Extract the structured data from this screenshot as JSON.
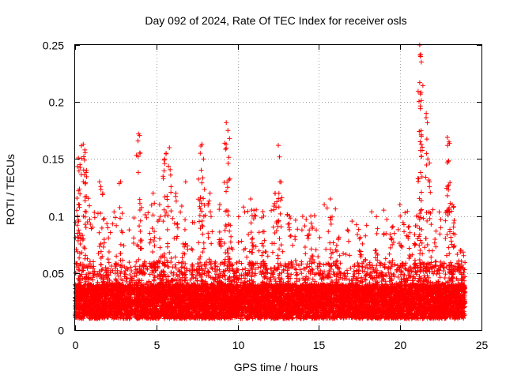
{
  "chart_data": {
    "type": "scatter",
    "title": "Day 092 of 2024, Rate Of TEC Index for receiver osls",
    "xlabel": "GPS time / hours",
    "ylabel": "ROTI / TECUs",
    "xlim": [
      0,
      25
    ],
    "ylim": [
      0,
      0.25
    ],
    "xticks": [
      0,
      5,
      10,
      15,
      20,
      25
    ],
    "yticks": [
      0,
      0.05,
      0.1,
      0.15,
      0.2,
      0.25
    ],
    "xtick_labels": [
      "0",
      "5",
      "10",
      "15",
      "20",
      "25"
    ],
    "ytick_labels": [
      "0",
      "0.05",
      "0.1",
      "0.15",
      "0.2",
      "0.25"
    ],
    "grid": true,
    "marker": "plus",
    "color": "#ff0000",
    "x_range_of_data": [
      0,
      24
    ],
    "baseline_band": [
      0.01,
      0.04
    ],
    "points_per_hour": 420,
    "seed": 92,
    "spikes": [
      {
        "x": 0.1,
        "y": 0.105
      },
      {
        "x": 0.2,
        "y": 0.151
      },
      {
        "x": 0.3,
        "y": 0.145
      },
      {
        "x": 0.5,
        "y": 0.163
      },
      {
        "x": 0.6,
        "y": 0.158
      },
      {
        "x": 0.7,
        "y": 0.14
      },
      {
        "x": 1.5,
        "y": 0.13
      },
      {
        "x": 1.7,
        "y": 0.12
      },
      {
        "x": 2.8,
        "y": 0.13
      },
      {
        "x": 3.9,
        "y": 0.172
      },
      {
        "x": 4.0,
        "y": 0.155
      },
      {
        "x": 4.8,
        "y": 0.12
      },
      {
        "x": 5.2,
        "y": 0.11
      },
      {
        "x": 5.5,
        "y": 0.15
      },
      {
        "x": 5.6,
        "y": 0.155
      },
      {
        "x": 5.8,
        "y": 0.16
      },
      {
        "x": 6.2,
        "y": 0.12
      },
      {
        "x": 6.8,
        "y": 0.13
      },
      {
        "x": 7.7,
        "y": 0.155
      },
      {
        "x": 7.8,
        "y": 0.163
      },
      {
        "x": 7.9,
        "y": 0.15
      },
      {
        "x": 8.3,
        "y": 0.12
      },
      {
        "x": 8.9,
        "y": 0.11
      },
      {
        "x": 9.3,
        "y": 0.182
      },
      {
        "x": 9.4,
        "y": 0.175
      },
      {
        "x": 9.5,
        "y": 0.168
      },
      {
        "x": 10.8,
        "y": 0.115
      },
      {
        "x": 11.0,
        "y": 0.105
      },
      {
        "x": 11.6,
        "y": 0.1
      },
      {
        "x": 12.3,
        "y": 0.12
      },
      {
        "x": 12.5,
        "y": 0.162
      },
      {
        "x": 12.6,
        "y": 0.13
      },
      {
        "x": 13.2,
        "y": 0.1
      },
      {
        "x": 14.5,
        "y": 0.1
      },
      {
        "x": 15.7,
        "y": 0.115
      },
      {
        "x": 16.2,
        "y": 0.08
      },
      {
        "x": 17.5,
        "y": 0.08
      },
      {
        "x": 18.5,
        "y": 0.07
      },
      {
        "x": 19.5,
        "y": 0.09
      },
      {
        "x": 20.0,
        "y": 0.1
      },
      {
        "x": 20.5,
        "y": 0.09
      },
      {
        "x": 21.0,
        "y": 0.1
      },
      {
        "x": 21.2,
        "y": 0.25
      },
      {
        "x": 21.25,
        "y": 0.24
      },
      {
        "x": 21.3,
        "y": 0.235
      },
      {
        "x": 21.2,
        "y": 0.217
      },
      {
        "x": 21.3,
        "y": 0.17
      },
      {
        "x": 21.6,
        "y": 0.19
      },
      {
        "x": 21.7,
        "y": 0.15
      },
      {
        "x": 21.8,
        "y": 0.13
      },
      {
        "x": 22.9,
        "y": 0.169
      },
      {
        "x": 23.0,
        "y": 0.165
      },
      {
        "x": 22.95,
        "y": 0.148
      },
      {
        "x": 23.2,
        "y": 0.11
      },
      {
        "x": 23.7,
        "y": 0.07
      }
    ]
  }
}
